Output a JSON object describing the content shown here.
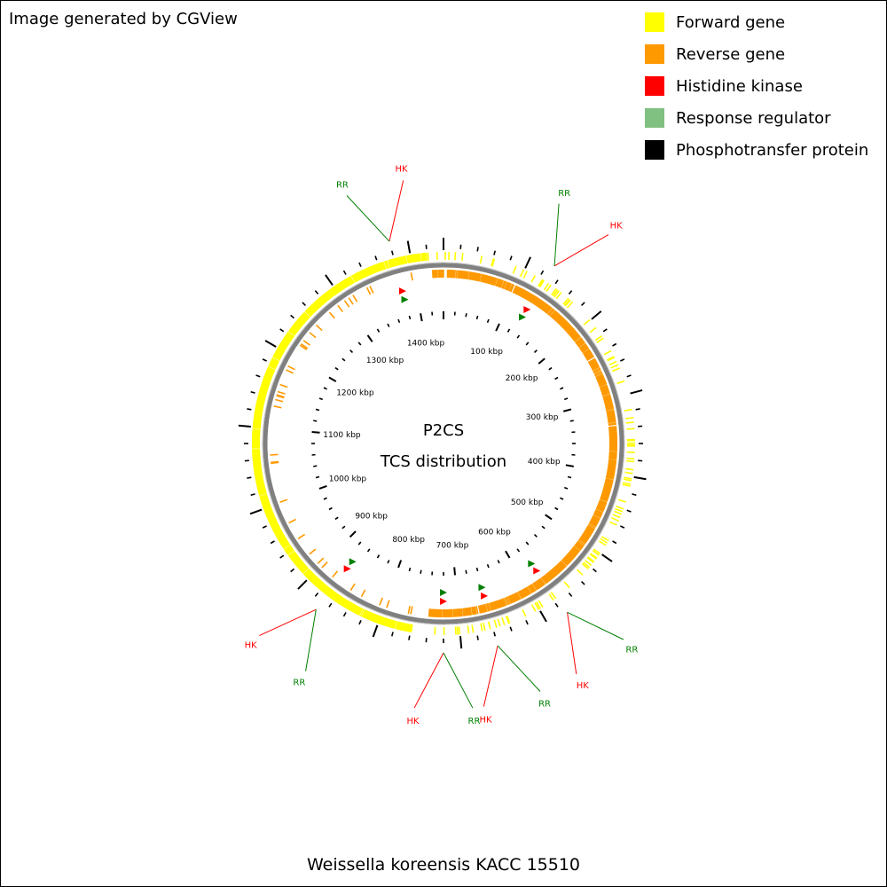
{
  "credit": "Image generated by CGView",
  "legend": [
    {
      "label": "Forward gene",
      "color": "#ffff00"
    },
    {
      "label": "Reverse gene",
      "color": "#ff9900"
    },
    {
      "label": "Histidine kinase",
      "color": "#ff0000"
    },
    {
      "label": "Response regulator",
      "color": "#80c080"
    },
    {
      "label": "Phosphotransfer protein",
      "color": "#000000"
    }
  ],
  "map": {
    "title": "P2CS",
    "subtitle": "TCS distribution",
    "organism": "Weissella koreensis KACC 15510",
    "genome_length_kbp": 1440,
    "tick_labels": [
      "100 kbp",
      "200 kbp",
      "300 kbp",
      "400 kbp",
      "500 kbp",
      "600 kbp",
      "700 kbp",
      "800 kbp",
      "900 kbp",
      "1000 kbp",
      "1100 kbp",
      "1200 kbp",
      "1300 kbp",
      "1400 kbp"
    ],
    "callouts": [
      {
        "hk": "HK",
        "rr": "RR",
        "pos_kbp": 1380
      },
      {
        "hk": "HK",
        "rr": "RR",
        "pos_kbp": 128
      },
      {
        "hk": "HK",
        "rr": "RR",
        "pos_kbp": 575
      },
      {
        "hk": "HK",
        "rr": "RR",
        "pos_kbp": 660
      },
      {
        "hk": "HK",
        "rr": "RR",
        "pos_kbp": 720
      },
      {
        "hk": "HK",
        "rr": "RR",
        "pos_kbp": 870
      }
    ],
    "colors": {
      "forward": "#ffff00",
      "reverse": "#ff9900",
      "hk": "#ff0000",
      "rr": "#008000",
      "backbone": "#808080"
    }
  }
}
